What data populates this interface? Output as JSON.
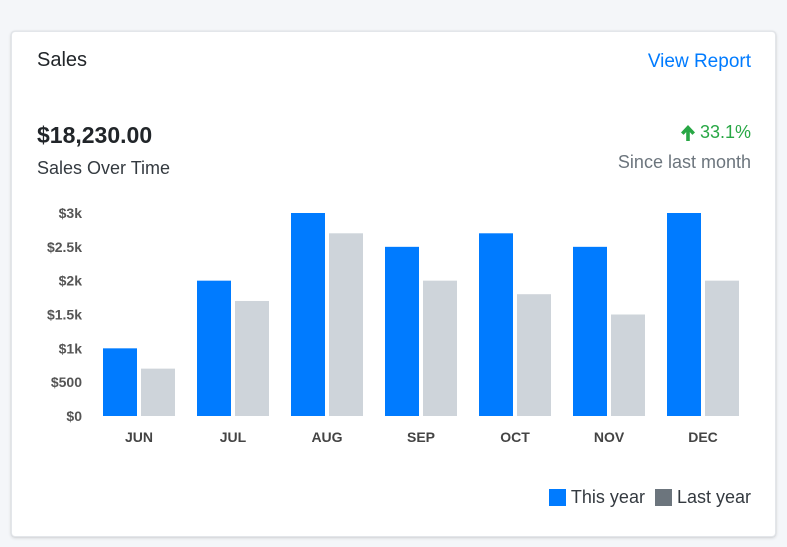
{
  "card": {
    "title": "Sales",
    "link_label": "View Report"
  },
  "summary": {
    "amount": "$18,230.00",
    "amount_label": "Sales Over Time",
    "change": "33.1%",
    "change_direction": "arrow-up-icon",
    "change_label": "Since last month",
    "change_color": "#28a745"
  },
  "legend": {
    "this_year": "This year",
    "last_year": "Last year",
    "last_year_swatch_color": "#6c757d"
  },
  "chart_data": {
    "type": "bar",
    "categories": [
      "JUN",
      "JUL",
      "AUG",
      "SEP",
      "OCT",
      "NOV",
      "DEC"
    ],
    "series": [
      {
        "name": "This year",
        "color": "#007bff",
        "values": [
          1000,
          2000,
          3000,
          2500,
          2700,
          2500,
          3000
        ]
      },
      {
        "name": "Last year",
        "color": "#ced4da",
        "values": [
          700,
          1700,
          2700,
          2000,
          1800,
          1500,
          2000
        ]
      }
    ],
    "yticks": [
      0,
      500,
      1000,
      1500,
      2000,
      2500,
      3000
    ],
    "ytick_labels": [
      "$0",
      "$500",
      "$1k",
      "$1.5k",
      "$2k",
      "$2.5k",
      "$3k"
    ],
    "ylim": [
      0,
      3000
    ],
    "grid": false,
    "legend_position": "bottom-right"
  }
}
